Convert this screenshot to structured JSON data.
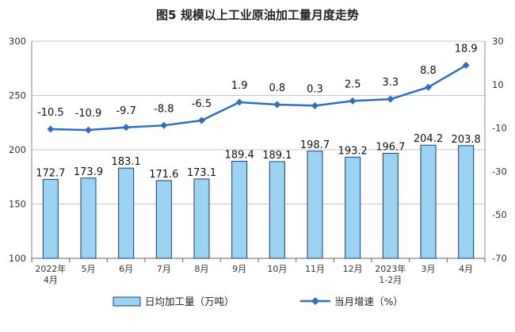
{
  "chart_data": {
    "type": "bar+line",
    "title": "图5 规模以上工业原油加工量月度走势",
    "categories": [
      [
        "2022年",
        "4月"
      ],
      [
        "5月"
      ],
      [
        "6月"
      ],
      [
        "7月"
      ],
      [
        "8月"
      ],
      [
        "9月"
      ],
      [
        "10月"
      ],
      [
        "11月"
      ],
      [
        "12月"
      ],
      [
        "2023年",
        "1-2月"
      ],
      [
        "3月"
      ],
      [
        "4月"
      ]
    ],
    "series": [
      {
        "name": "日均加工量（万吨）",
        "type": "bar",
        "axis": "left",
        "color": "#9ad3f3",
        "values": [
          172.7,
          173.9,
          183.1,
          171.6,
          173.1,
          189.4,
          189.1,
          198.7,
          193.2,
          196.7,
          204.2,
          203.8
        ],
        "labels": [
          "172.7",
          "173.9",
          "183.1",
          "171.6",
          "173.1",
          "189.4",
          "189.1",
          "198.7",
          "193.2",
          "196.7",
          "204.2",
          "203.8"
        ]
      },
      {
        "name": "当月增速（%）",
        "type": "line",
        "axis": "right",
        "color": "#2e6fc0",
        "values": [
          -10.5,
          -10.9,
          -9.7,
          -8.8,
          -6.5,
          1.9,
          0.8,
          0.3,
          2.5,
          3.3,
          8.8,
          18.9
        ],
        "labels": [
          "-10.5",
          "-10.9",
          "-9.7",
          "-8.8",
          "-6.5",
          "1.9",
          "0.8",
          "0.3",
          "2.5",
          "3.3",
          "8.8",
          "18.9"
        ]
      }
    ],
    "y_left": {
      "range": [
        100,
        300
      ],
      "ticks": [
        "100",
        "150",
        "200",
        "250",
        "300"
      ]
    },
    "y_right": {
      "range": [
        -70,
        30
      ],
      "ticks": [
        "-70",
        "-50",
        "-30",
        "-10",
        "10",
        "30"
      ]
    },
    "grid": true,
    "legend": "bottom"
  }
}
